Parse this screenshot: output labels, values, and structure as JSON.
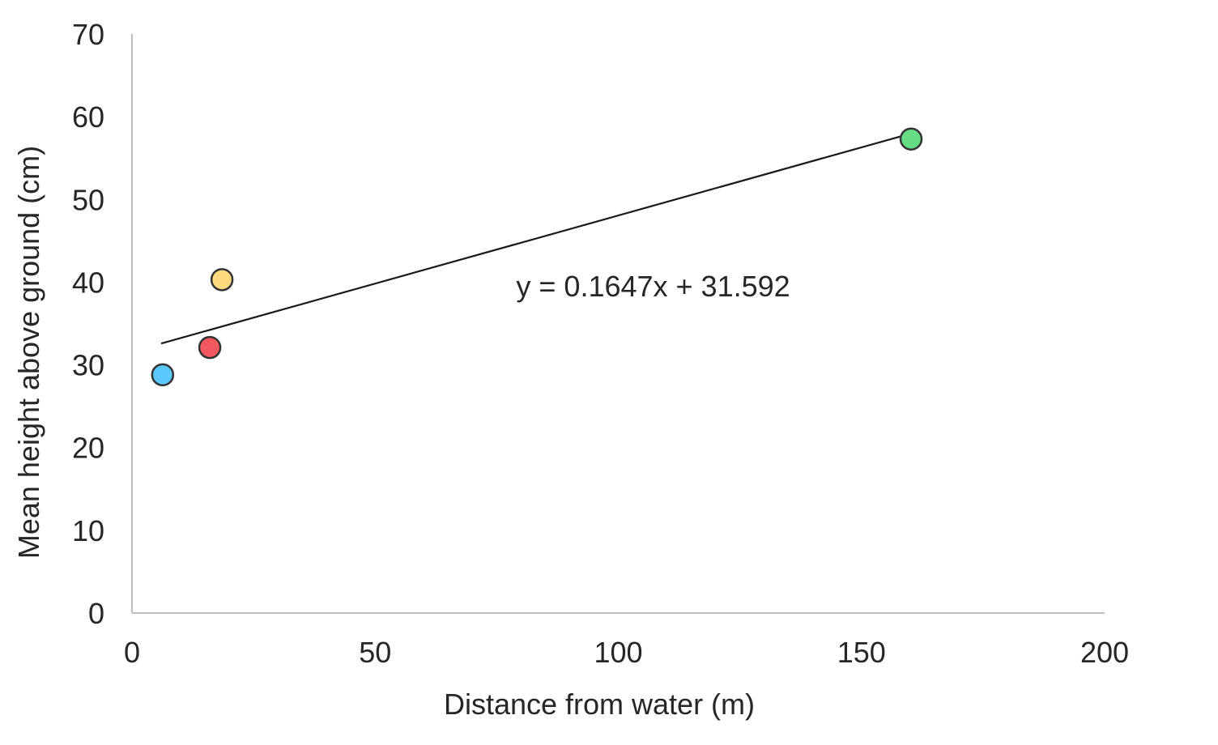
{
  "chart_data": {
    "type": "scatter",
    "title": "",
    "xlabel": "Distance from water (m)",
    "ylabel": "Mean height above ground (cm)",
    "xlim": [
      0,
      200
    ],
    "ylim": [
      0,
      70
    ],
    "x_ticks": [
      0,
      50,
      100,
      150,
      200
    ],
    "y_ticks": [
      0,
      10,
      20,
      30,
      40,
      50,
      60,
      70
    ],
    "grid": false,
    "legend": null,
    "points": [
      {
        "x": 6.3,
        "y": 28.8,
        "color": "#5bc8fb"
      },
      {
        "x": 16.0,
        "y": 32.1,
        "color": "#f2585e"
      },
      {
        "x": 18.5,
        "y": 40.3,
        "color": "#fdda7e"
      },
      {
        "x": 160.2,
        "y": 57.3,
        "color": "#66dd85"
      }
    ],
    "trendline": {
      "type": "linear",
      "slope": 0.1647,
      "intercept": 31.592,
      "x_start": 6.0,
      "x_end": 160.0,
      "equation_label": "y = 0.1647x + 31.592",
      "label_position": {
        "x": 79,
        "y": 38.3
      }
    }
  },
  "colors": {
    "axis": "#bfbfbf",
    "text": "#262626",
    "trendline": "#1a1a1a",
    "marker_edge": "#333333"
  }
}
